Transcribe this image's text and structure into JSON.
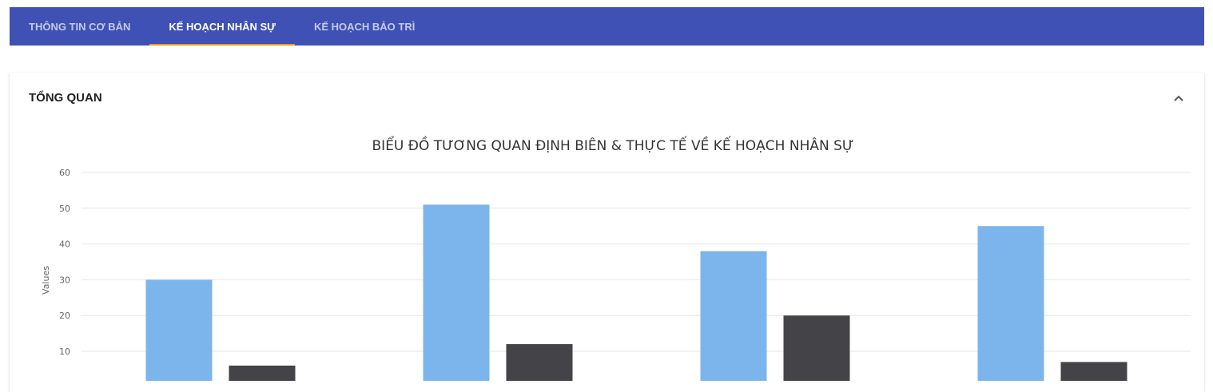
{
  "tabs": [
    {
      "label": "THÔNG TIN CƠ BẢN",
      "active": false
    },
    {
      "label": "KẾ HOẠCH NHÂN SỰ",
      "active": true
    },
    {
      "label": "KẾ HOẠCH BẢO TRÌ",
      "active": false
    }
  ],
  "panel": {
    "title": "TỔNG QUAN",
    "collapse_icon": "chevron-up-icon"
  },
  "colors": {
    "tabbar": "#3f51b5",
    "active_indicator": "#ff9800",
    "series_1": "#7cb5ec",
    "series_2": "#434348"
  },
  "chart_data": {
    "type": "bar",
    "title": "BIỂU ĐỒ TƯƠNG QUAN ĐỊNH BIÊN & THỰC TẾ VỀ KẾ HOẠCH NHÂN SỰ",
    "xlabel": "",
    "ylabel": "Values",
    "ylim": [
      0,
      60
    ],
    "yticks": [
      10,
      20,
      30,
      40,
      50,
      60
    ],
    "grid": true,
    "categories": [
      "",
      "",
      "",
      ""
    ],
    "series": [
      {
        "values": [
          30,
          51,
          38,
          45
        ],
        "color": "#7cb5ec"
      },
      {
        "values": [
          6,
          12,
          20,
          7
        ],
        "color": "#434348"
      }
    ]
  }
}
